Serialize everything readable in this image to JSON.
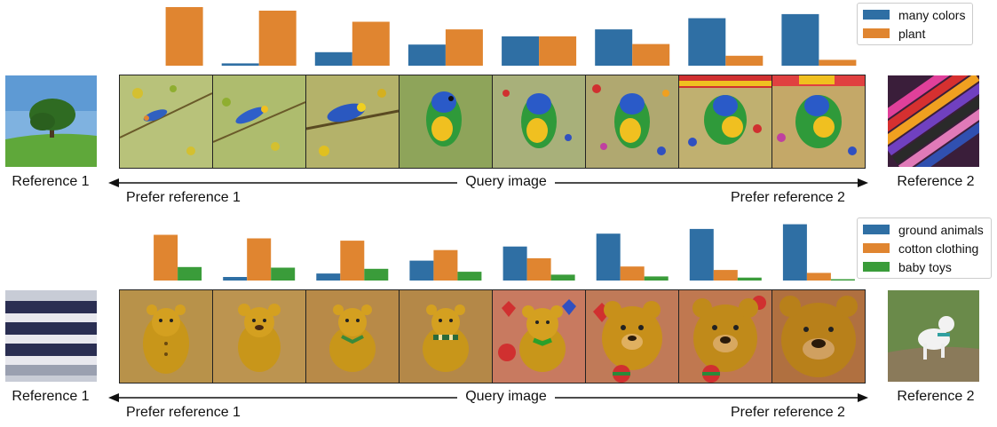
{
  "panels": [
    {
      "reference_left_label": "Reference 1",
      "reference_right_label": "Reference 2",
      "query_label": "Query image",
      "prefer_left": "Prefer reference 1",
      "prefer_right": "Prefer reference 2",
      "reference_left_image": "tree-on-grass",
      "reference_right_image": "crayons",
      "query_images": [
        "bird-on-branches",
        "bird-on-branches",
        "parrot-in-foliage",
        "parrot-in-foliage",
        "parrot-colorful",
        "parrot-colorful",
        "parrot-colorful",
        "parrot-colorful"
      ]
    },
    {
      "reference_left_label": "Reference 1",
      "reference_right_label": "Reference 2",
      "query_label": "Query image",
      "prefer_left": "Prefer reference 1",
      "prefer_right": "Prefer reference 2",
      "reference_left_image": "striped-sweater",
      "reference_right_image": "running-dog",
      "query_images": [
        "knitted-teddy",
        "knitted-teddy",
        "knitted-teddy",
        "knitted-teddy",
        "teddy-with-hearts",
        "bear-with-ball",
        "bear-with-ball",
        "bear-face"
      ]
    }
  ],
  "chart_data": [
    {
      "type": "bar",
      "series": [
        {
          "name": "many colors",
          "color": "#2f6fa4",
          "values": [
            0.0,
            0.04,
            0.23,
            0.36,
            0.5,
            0.62,
            0.81,
            0.88
          ]
        },
        {
          "name": "plant",
          "color": "#e08530",
          "values": [
            1.0,
            0.94,
            0.75,
            0.62,
            0.5,
            0.37,
            0.17,
            0.1
          ]
        }
      ],
      "ylim": [
        0,
        1
      ],
      "legend": "top-right"
    },
    {
      "type": "bar",
      "series": [
        {
          "name": "ground animals",
          "color": "#2f6fa4",
          "values": [
            0.0,
            0.06,
            0.12,
            0.34,
            0.58,
            0.8,
            0.88,
            0.96
          ]
        },
        {
          "name": "cotton clothing",
          "color": "#e08530",
          "values": [
            0.78,
            0.72,
            0.68,
            0.52,
            0.38,
            0.24,
            0.18,
            0.13
          ]
        },
        {
          "name": "baby toys",
          "color": "#3a9c3a",
          "values": [
            0.23,
            0.22,
            0.2,
            0.15,
            0.1,
            0.07,
            0.05,
            0.02
          ]
        }
      ],
      "ylim": [
        0,
        1
      ],
      "legend": "top-right"
    }
  ]
}
